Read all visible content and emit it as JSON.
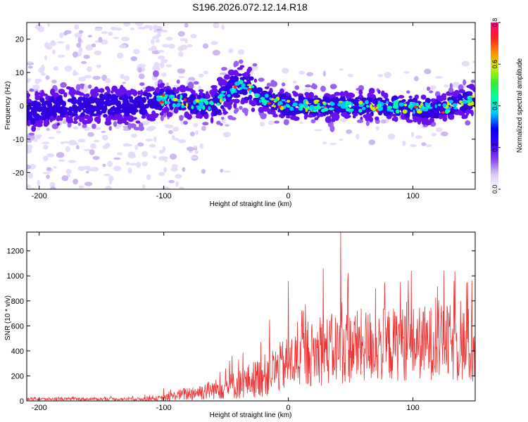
{
  "figure_title": "S196.2026.072.12.14.R18",
  "chart_data": [
    {
      "type": "heatmap",
      "title": "S196.2026.072.12.14.R18",
      "xlabel": "Height of straight line (km)",
      "ylabel": "Frequency (Hz)",
      "xlim": [
        -210,
        150
      ],
      "ylim": [
        -25,
        25
      ],
      "xticks": [
        -200,
        -100,
        0,
        100
      ],
      "xtick_labels": [
        "-200",
        "-100",
        "0",
        "100"
      ],
      "yticks": [
        20,
        10,
        0,
        -10,
        -20
      ],
      "ytick_labels": [
        "20",
        "10",
        "0",
        "-10",
        "-20"
      ],
      "colorbar": {
        "label": "Normalized spectral amplitude",
        "range": [
          0.0,
          0.8
        ],
        "ticks": [
          0.0,
          0.2,
          0.4,
          0.6,
          0.8
        ],
        "tick_labels": [
          "0.0",
          "0.2",
          "0.4",
          "0.6",
          "0.8"
        ],
        "colors": [
          "#ffffff",
          "#d8c8f4",
          "#8a3cf0",
          "#3f00ff",
          "#0000ff",
          "#00c8ff",
          "#00ffaa",
          "#30f030",
          "#c8f000",
          "#ff9000",
          "#ff2020",
          "#ff0080"
        ]
      },
      "ridge_center_freq": [
        {
          "x": -210,
          "f": -2
        },
        {
          "x": -180,
          "f": 0
        },
        {
          "x": -150,
          "f": 0
        },
        {
          "x": -120,
          "f": 0
        },
        {
          "x": -100,
          "f": 2
        },
        {
          "x": -80,
          "f": 1
        },
        {
          "x": -60,
          "f": 0
        },
        {
          "x": -50,
          "f": 4
        },
        {
          "x": -40,
          "f": 6
        },
        {
          "x": -30,
          "f": 5
        },
        {
          "x": -20,
          "f": 2
        },
        {
          "x": 0,
          "f": 0
        },
        {
          "x": 40,
          "f": 0
        },
        {
          "x": 80,
          "f": 0
        },
        {
          "x": 120,
          "f": -1
        },
        {
          "x": 150,
          "f": 2
        }
      ]
    },
    {
      "type": "line",
      "xlabel": "Height of straight line (km)",
      "ylabel": "SNR (10 * v/v)",
      "xlim": [
        -210,
        150
      ],
      "ylim": [
        0,
        1350
      ],
      "xticks": [
        -200,
        -100,
        0,
        100
      ],
      "xtick_labels": [
        "-200",
        "-100",
        "0",
        "100"
      ],
      "yticks": [
        0,
        200,
        400,
        600,
        800,
        1000,
        1200
      ],
      "ytick_labels": [
        "0",
        "200",
        "400",
        "600",
        "800",
        "1000",
        "1200"
      ],
      "series": [
        {
          "name": "SNR",
          "color": "#ee3333",
          "envelope": {
            "x": [
              -210,
              -120,
              -100,
              -90,
              -80,
              -60,
              -40,
              -20,
              0,
              20,
              40,
              60,
              80,
              100,
              120,
              140,
              150
            ],
            "base": [
              15,
              15,
              20,
              45,
              60,
              90,
              130,
              200,
              300,
              380,
              420,
              440,
              450,
              460,
              470,
              450,
              420
            ],
            "spread": [
              12,
              12,
              25,
              40,
              60,
              80,
              120,
              170,
              220,
              260,
              300,
              300,
              300,
              300,
              300,
              320,
              320
            ]
          },
          "peaks": [
            {
              "x": -115,
              "y": 50
            },
            {
              "x": -100,
              "y": 100
            },
            {
              "x": -65,
              "y": 140
            },
            {
              "x": -55,
              "y": 230
            },
            {
              "x": -45,
              "y": 360
            },
            {
              "x": -40,
              "y": 330
            },
            {
              "x": -22,
              "y": 470
            },
            {
              "x": -15,
              "y": 650
            },
            {
              "x": 0,
              "y": 960
            },
            {
              "x": 12,
              "y": 720
            },
            {
              "x": 28,
              "y": 1060
            },
            {
              "x": 42,
              "y": 1350
            },
            {
              "x": 48,
              "y": 1020
            },
            {
              "x": 70,
              "y": 900
            },
            {
              "x": 90,
              "y": 950
            },
            {
              "x": 125,
              "y": 1040
            },
            {
              "x": 133,
              "y": 960
            },
            {
              "x": 144,
              "y": 950
            }
          ]
        }
      ]
    }
  ]
}
